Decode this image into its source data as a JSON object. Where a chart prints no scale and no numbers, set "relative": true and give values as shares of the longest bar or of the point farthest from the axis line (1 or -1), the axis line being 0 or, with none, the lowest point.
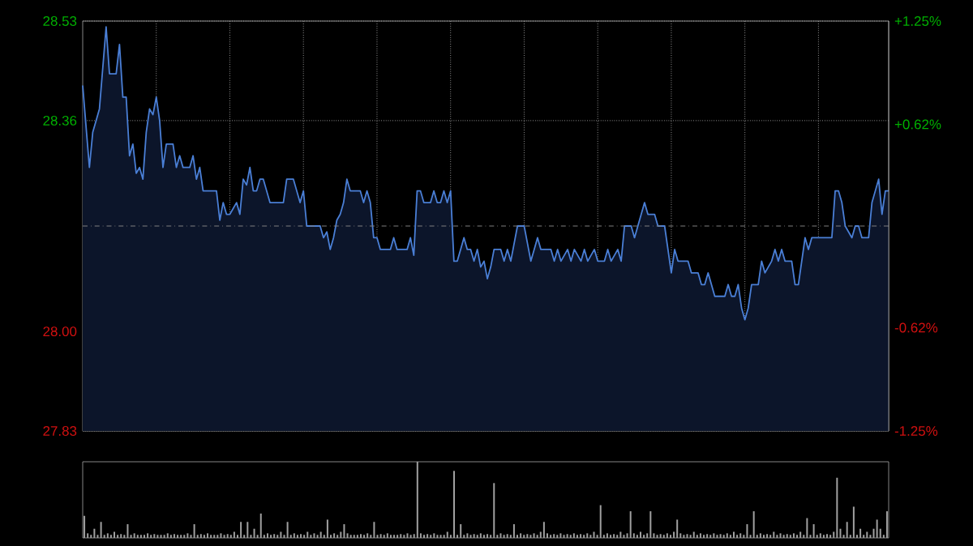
{
  "chart_data": [
    {
      "type": "area",
      "color": "#4a7fd6",
      "categories": [
        null,
        null,
        null,
        null,
        null,
        null,
        null,
        null,
        null,
        null,
        null,
        null,
        null,
        null,
        null,
        null,
        null,
        null,
        null,
        null,
        null,
        null,
        null,
        null,
        null,
        null,
        null,
        null,
        null,
        null,
        null,
        null,
        null,
        null,
        null,
        null,
        null,
        null,
        null,
        null,
        null,
        null,
        null,
        null,
        null,
        null,
        null,
        null,
        null,
        null,
        null,
        null,
        null,
        null,
        null,
        null,
        null,
        null,
        null,
        null,
        null,
        null,
        null,
        null,
        null,
        null,
        null,
        null,
        null,
        null,
        null,
        null,
        null,
        null,
        null,
        null,
        null,
        null,
        null,
        null,
        null,
        null,
        null,
        null,
        null,
        null,
        null,
        null,
        null,
        null,
        null,
        null,
        null,
        null,
        null,
        null,
        null,
        null,
        null,
        null,
        null,
        null,
        null,
        null,
        null,
        null,
        null,
        null,
        null,
        null,
        null,
        null,
        null,
        null,
        null,
        null,
        null,
        null,
        null,
        null,
        null,
        null,
        null,
        null,
        null,
        null,
        null,
        null,
        null,
        null,
        null,
        null,
        null,
        null,
        null,
        null,
        null,
        null,
        null,
        null,
        null,
        null,
        null,
        null,
        null,
        null,
        null,
        null,
        null,
        null,
        null,
        null,
        null,
        null,
        null,
        null,
        null,
        null,
        null,
        null,
        null,
        null,
        null,
        null,
        null,
        null,
        null,
        null,
        null,
        null,
        null,
        null,
        null,
        null,
        null,
        null,
        null,
        null,
        null,
        null,
        null,
        null,
        null,
        null,
        null,
        null,
        null,
        null,
        null,
        null,
        null,
        null,
        null,
        null,
        null,
        null,
        null,
        null,
        null,
        null,
        null,
        null,
        null,
        null,
        null,
        null,
        null,
        null,
        null,
        null,
        null,
        null,
        null,
        null,
        null,
        null,
        null,
        null,
        null,
        null,
        null,
        null,
        null,
        null,
        null,
        null,
        null,
        null,
        null,
        null,
        null,
        null,
        null,
        null,
        null,
        null,
        null,
        null,
        null,
        null,
        null,
        null
      ],
      "values": [
        28.42,
        28.35,
        28.28,
        28.34,
        28.36,
        28.38,
        28.45,
        28.52,
        28.44,
        28.44,
        28.44,
        28.49,
        28.4,
        28.4,
        28.3,
        28.32,
        28.27,
        28.28,
        28.26,
        28.34,
        28.38,
        28.37,
        28.4,
        28.36,
        28.28,
        28.32,
        28.32,
        28.32,
        28.28,
        28.3,
        28.28,
        28.28,
        28.28,
        28.3,
        28.26,
        28.28,
        28.24,
        28.24,
        28.24,
        28.24,
        28.24,
        28.19,
        28.22,
        28.2,
        28.2,
        28.21,
        28.22,
        28.2,
        28.26,
        28.25,
        28.28,
        28.24,
        28.24,
        28.26,
        28.26,
        28.24,
        28.22,
        28.22,
        28.22,
        28.22,
        28.22,
        28.26,
        28.26,
        28.26,
        28.24,
        28.22,
        28.24,
        28.18,
        28.18,
        28.18,
        28.18,
        28.18,
        28.16,
        28.17,
        28.14,
        28.16,
        28.19,
        28.2,
        28.22,
        28.26,
        28.24,
        28.24,
        28.24,
        28.24,
        28.22,
        28.24,
        28.22,
        28.16,
        28.16,
        28.14,
        28.14,
        28.14,
        28.14,
        28.16,
        28.14,
        28.14,
        28.14,
        28.14,
        28.16,
        28.13,
        28.24,
        28.24,
        28.22,
        28.22,
        28.22,
        28.24,
        28.22,
        28.22,
        28.24,
        28.22,
        28.24,
        28.12,
        28.12,
        28.14,
        28.16,
        28.14,
        28.14,
        28.12,
        28.14,
        28.11,
        28.12,
        28.09,
        28.11,
        28.14,
        28.14,
        28.14,
        28.12,
        28.14,
        28.12,
        28.15,
        28.18,
        28.18,
        28.18,
        28.15,
        28.12,
        28.14,
        28.16,
        28.14,
        28.14,
        28.14,
        28.14,
        28.12,
        28.14,
        28.12,
        28.13,
        28.14,
        28.12,
        28.14,
        28.13,
        28.12,
        28.14,
        28.12,
        28.13,
        28.14,
        28.12,
        28.12,
        28.12,
        28.14,
        28.12,
        28.13,
        28.14,
        28.12,
        28.18,
        28.18,
        28.18,
        28.16,
        28.18,
        28.2,
        28.22,
        28.2,
        28.2,
        28.2,
        28.18,
        28.18,
        28.18,
        28.14,
        28.1,
        28.14,
        28.12,
        28.12,
        28.12,
        28.12,
        28.1,
        28.1,
        28.1,
        28.08,
        28.08,
        28.1,
        28.08,
        28.06,
        28.06,
        28.06,
        28.06,
        28.08,
        28.06,
        28.06,
        28.08,
        28.04,
        28.02,
        28.04,
        28.08,
        28.08,
        28.08,
        28.12,
        28.1,
        28.11,
        28.12,
        28.14,
        28.12,
        28.14,
        28.12,
        28.12,
        28.12,
        28.08,
        28.08,
        28.12,
        28.16,
        28.14,
        28.16,
        28.16,
        28.16,
        28.16,
        28.16,
        28.16,
        28.16,
        28.24,
        28.24,
        28.22,
        28.18,
        28.17,
        28.16,
        28.18,
        28.18,
        28.16,
        28.16,
        28.16,
        28.22,
        28.24,
        28.26,
        28.2,
        28.24,
        28.24
      ],
      "ylim": [
        27.83,
        28.53
      ],
      "yticks": [
        {
          "value": 27.83,
          "label": "27.83"
        },
        {
          "value": 28.0,
          "label": "28.00"
        },
        {
          "value": 28.36,
          "label": "28.36"
        },
        {
          "value": 28.53,
          "label": "28.53"
        }
      ],
      "y2lim": [
        -1.25,
        1.25
      ],
      "y2ticks": [
        {
          "value": -1.25,
          "label": "-1.25%"
        },
        {
          "value": -0.62,
          "label": "-0.62%"
        },
        {
          "value": 0.62,
          "label": "+0.62%"
        },
        {
          "value": 1.25,
          "label": "+1.25%"
        }
      ],
      "ref_lines": [
        {
          "axis": "y",
          "value": 28.18,
          "color": "#808080",
          "line_style": "dashdot"
        }
      ],
      "grid": true,
      "tick_labels": "y"
    },
    {
      "type": "bar",
      "color": "#a0a0a0",
      "relative": true,
      "tick_labels": false,
      "categories": [
        null,
        null,
        null,
        null,
        null,
        null,
        null,
        null,
        null,
        null,
        null,
        null,
        null,
        null,
        null,
        null,
        null,
        null,
        null,
        null,
        null,
        null,
        null,
        null,
        null,
        null,
        null,
        null,
        null,
        null,
        null,
        null,
        null,
        null,
        null,
        null,
        null,
        null,
        null,
        null,
        null,
        null,
        null,
        null,
        null,
        null,
        null,
        null,
        null,
        null,
        null,
        null,
        null,
        null,
        null,
        null,
        null,
        null,
        null,
        null,
        null,
        null,
        null,
        null,
        null,
        null,
        null,
        null,
        null,
        null,
        null,
        null,
        null,
        null,
        null,
        null,
        null,
        null,
        null,
        null,
        null,
        null,
        null,
        null,
        null,
        null,
        null,
        null,
        null,
        null,
        null,
        null,
        null,
        null,
        null,
        null,
        null,
        null,
        null,
        null,
        null,
        null,
        null,
        null,
        null,
        null,
        null,
        null,
        null,
        null,
        null,
        null,
        null,
        null,
        null,
        null,
        null,
        null,
        null,
        null,
        null,
        null,
        null,
        null,
        null,
        null,
        null,
        null,
        null,
        null,
        null,
        null,
        null,
        null,
        null,
        null,
        null,
        null,
        null,
        null,
        null,
        null,
        null,
        null,
        null,
        null,
        null,
        null,
        null,
        null,
        null,
        null,
        null,
        null,
        null,
        null,
        null,
        null,
        null,
        null,
        null,
        null,
        null,
        null,
        null,
        null,
        null,
        null,
        null,
        null,
        null,
        null,
        null,
        null,
        null,
        null,
        null,
        null,
        null,
        null,
        null,
        null,
        null,
        null,
        null,
        null,
        null,
        null,
        null,
        null,
        null,
        null,
        null,
        null,
        null,
        null,
        null,
        null,
        null,
        null,
        null,
        null,
        null,
        null,
        null,
        null,
        null,
        null,
        null,
        null,
        null,
        null,
        null,
        null,
        null,
        null,
        null,
        null,
        null,
        null,
        null,
        null,
        null,
        null,
        null,
        null,
        null,
        null,
        null,
        null,
        null,
        null,
        null,
        null,
        null,
        null,
        null,
        null,
        null,
        null,
        null,
        null
      ],
      "values": [
        0.29,
        0.06,
        0.04,
        0.12,
        0.04,
        0.21,
        0.04,
        0.06,
        0.04,
        0.08,
        0.04,
        0.05,
        0.04,
        0.18,
        0.04,
        0.06,
        0.04,
        0.04,
        0.04,
        0.06,
        0.04,
        0.05,
        0.04,
        0.04,
        0.04,
        0.06,
        0.04,
        0.05,
        0.04,
        0.04,
        0.04,
        0.06,
        0.04,
        0.18,
        0.04,
        0.05,
        0.04,
        0.06,
        0.04,
        0.04,
        0.04,
        0.06,
        0.04,
        0.05,
        0.04,
        0.08,
        0.04,
        0.21,
        0.04,
        0.21,
        0.04,
        0.12,
        0.04,
        0.32,
        0.04,
        0.06,
        0.04,
        0.05,
        0.04,
        0.08,
        0.04,
        0.21,
        0.04,
        0.06,
        0.04,
        0.05,
        0.04,
        0.08,
        0.04,
        0.06,
        0.04,
        0.08,
        0.04,
        0.24,
        0.04,
        0.06,
        0.04,
        0.08,
        0.18,
        0.06,
        0.04,
        0.04,
        0.04,
        0.05,
        0.04,
        0.06,
        0.04,
        0.21,
        0.04,
        0.05,
        0.04,
        0.06,
        0.04,
        0.04,
        0.04,
        0.05,
        0.04,
        0.06,
        0.04,
        0.05,
        1,
        0.06,
        0.04,
        0.05,
        0.04,
        0.06,
        0.04,
        0.04,
        0.04,
        0.08,
        0.04,
        0.88,
        0.04,
        0.18,
        0.04,
        0.06,
        0.04,
        0.05,
        0.04,
        0.06,
        0.04,
        0.05,
        0.04,
        0.72,
        0.04,
        0.06,
        0.04,
        0.05,
        0.04,
        0.18,
        0.04,
        0.06,
        0.04,
        0.05,
        0.04,
        0.06,
        0.04,
        0.08,
        0.21,
        0.06,
        0.04,
        0.05,
        0.04,
        0.06,
        0.04,
        0.05,
        0.04,
        0.06,
        0.04,
        0.05,
        0.04,
        0.06,
        0.04,
        0.08,
        0.04,
        0.43,
        0.04,
        0.06,
        0.04,
        0.05,
        0.04,
        0.08,
        0.04,
        0.06,
        0.35,
        0.06,
        0.04,
        0.08,
        0.04,
        0.06,
        0.35,
        0.06,
        0.04,
        0.05,
        0.04,
        0.06,
        0.04,
        0.08,
        0.24,
        0.06,
        0.04,
        0.05,
        0.04,
        0.08,
        0.04,
        0.06,
        0.04,
        0.05,
        0.04,
        0.06,
        0.04,
        0.05,
        0.04,
        0.06,
        0.04,
        0.08,
        0.04,
        0.06,
        0.04,
        0.18,
        0.04,
        0.35,
        0.04,
        0.06,
        0.04,
        0.05,
        0.04,
        0.08,
        0.04,
        0.06,
        0.04,
        0.05,
        0.04,
        0.06,
        0.04,
        0.08,
        0.04,
        0.26,
        0.04,
        0.18,
        0.04,
        0.06,
        0.04,
        0.05,
        0.04,
        0.08,
        0.79,
        0.12,
        0.04,
        0.21,
        0.04,
        0.41,
        0.04,
        0.12,
        0.04,
        0.08,
        0.04,
        0.12,
        0.24,
        0.12,
        0.04,
        0.35
      ]
    }
  ]
}
